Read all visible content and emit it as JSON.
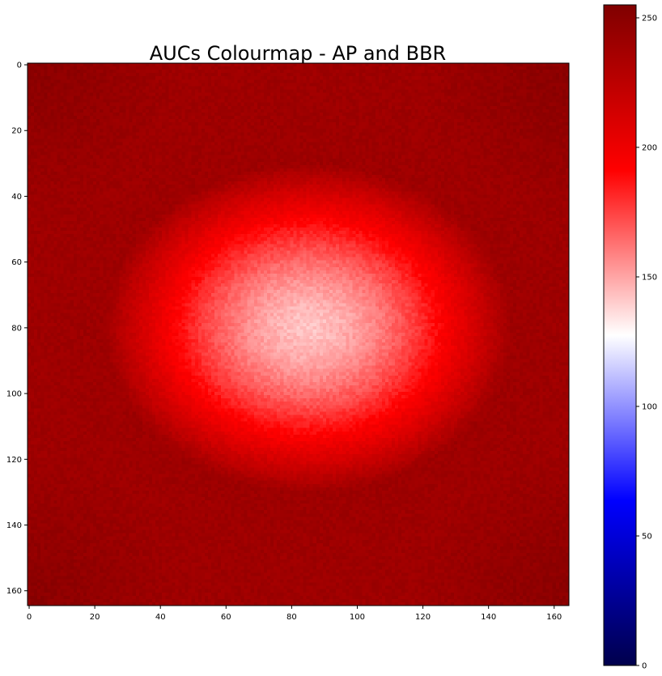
{
  "chart_data": {
    "type": "heatmap",
    "title": "AUCs Colourmap - AP and BBR",
    "xlabel": "",
    "ylabel": "",
    "grid_size": [
      165,
      165
    ],
    "xlim": [
      -0.5,
      164.5
    ],
    "ylim": [
      164.5,
      -0.5
    ],
    "y_axis_inverted": true,
    "x_ticks": [
      0,
      20,
      40,
      60,
      80,
      100,
      120,
      140,
      160
    ],
    "y_ticks": [
      0,
      20,
      40,
      60,
      80,
      100,
      120,
      140,
      160
    ],
    "colormap": "seismic",
    "colormap_stops": [
      "#00004c",
      "#0000ff",
      "#ffffff",
      "#ff0000",
      "#800000"
    ],
    "colorbar": {
      "range": [
        0,
        255
      ],
      "ticks": [
        0,
        50,
        100,
        150,
        200,
        250
      ],
      "placement": "right"
    },
    "value_field": {
      "description_values": "AUC values per pixel",
      "center_xy": [
        85,
        80
      ],
      "center_value": 142,
      "edge_value": 240,
      "corner_value": 250,
      "noise_amplitude": 4
    },
    "grid": false
  }
}
